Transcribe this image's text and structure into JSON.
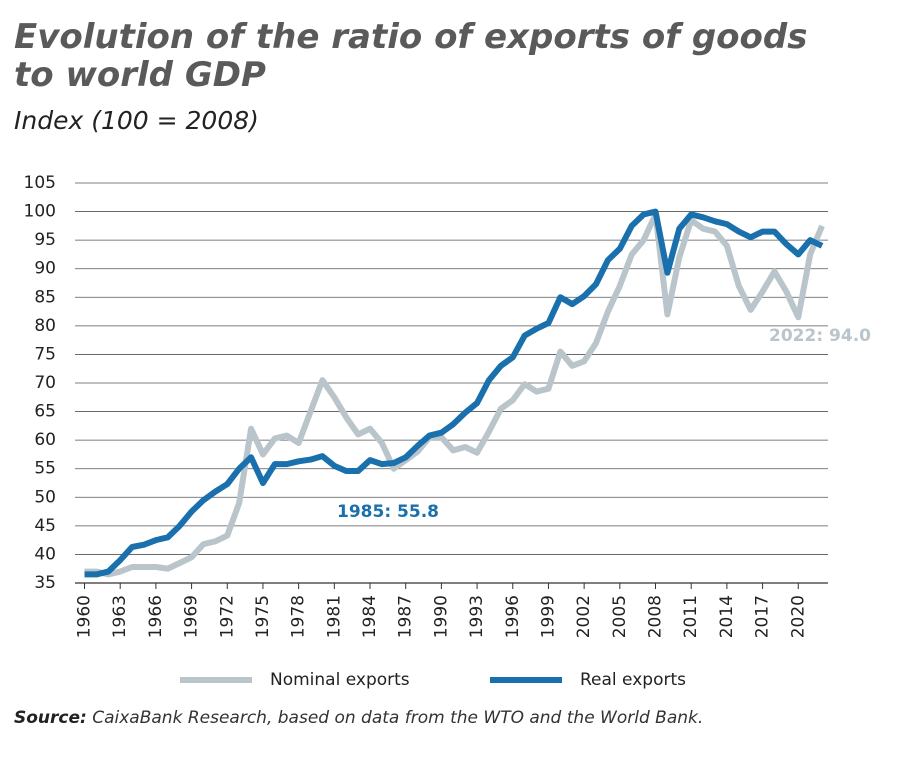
{
  "chart_data": {
    "type": "line",
    "title": [
      "Evolution of the ratio of exports of goods",
      "to world GDP"
    ],
    "subtitle": "Index (100 = 2008)",
    "x": [
      1960,
      1961,
      1962,
      1963,
      1964,
      1965,
      1966,
      1967,
      1968,
      1969,
      1970,
      1971,
      1972,
      1973,
      1974,
      1975,
      1976,
      1977,
      1978,
      1979,
      1980,
      1981,
      1982,
      1983,
      1984,
      1985,
      1986,
      1987,
      1988,
      1989,
      1990,
      1991,
      1992,
      1993,
      1994,
      1995,
      1996,
      1997,
      1998,
      1999,
      2000,
      2001,
      2002,
      2003,
      2004,
      2005,
      2006,
      2007,
      2008,
      2009,
      2010,
      2011,
      2012,
      2013,
      2014,
      2015,
      2016,
      2017,
      2018,
      2019,
      2020,
      2021,
      2022
    ],
    "series": [
      {
        "name": "Nominal exports",
        "color": "#b9c5ca",
        "values": [
          37,
          37,
          36.5,
          37,
          37.8,
          37.8,
          37.8,
          37.5,
          38.5,
          39.5,
          41.8,
          42.3,
          43.3,
          49,
          62,
          57.5,
          60.3,
          60.8,
          59.5,
          65,
          70.5,
          67.5,
          64,
          61,
          62,
          59.5,
          55,
          56.5,
          58,
          60.5,
          60.5,
          58.2,
          58.8,
          57.8,
          61.5,
          65.5,
          67,
          69.8,
          68.5,
          69,
          75.5,
          73,
          73.8,
          77,
          82.5,
          87,
          92.5,
          95,
          99.5,
          82,
          92,
          98.5,
          97,
          96.5,
          94,
          87,
          82.8,
          86,
          89.5,
          86,
          81.5,
          92.5,
          97.5
        ]
      },
      {
        "name": "Real exports",
        "color": "#1a6fad",
        "values": [
          36.5,
          36.5,
          37,
          39,
          41.3,
          41.7,
          42.5,
          43,
          45,
          47.5,
          49.5,
          51,
          52.3,
          55,
          57,
          52.5,
          55.8,
          55.8,
          56.3,
          56.6,
          57.2,
          55.5,
          54.6,
          54.6,
          56.5,
          55.8,
          56,
          57,
          59,
          60.8,
          61.3,
          62.8,
          64.8,
          66.5,
          70.5,
          73,
          74.5,
          78.3,
          79.5,
          80.5,
          85,
          83.8,
          85.2,
          87.3,
          91.5,
          93.5,
          97.5,
          99.5,
          100,
          89.3,
          97,
          99.5,
          99,
          98.3,
          97.8,
          96.5,
          95.5,
          96.5,
          96.5,
          94.3,
          92.5,
          95,
          94
        ]
      }
    ],
    "annotations": [
      "1985: 55.8",
      "2022: 94.0"
    ],
    "xlim": [
      1959.2,
      2022.5
    ],
    "xticks": [
      1960,
      1963,
      1966,
      1969,
      1972,
      1975,
      1978,
      1981,
      1984,
      1987,
      1990,
      1993,
      1996,
      1999,
      2002,
      2005,
      2008,
      2011,
      2014,
      2017,
      2020
    ],
    "ylim": [
      35,
      105
    ],
    "yticks": [
      35,
      40,
      45,
      50,
      55,
      60,
      65,
      70,
      75,
      80,
      85,
      90,
      95,
      100,
      105
    ],
    "grid": true,
    "source_label": "Source:",
    "source_text": "CaixaBank Research, based on data from the WTO and the World Bank."
  }
}
